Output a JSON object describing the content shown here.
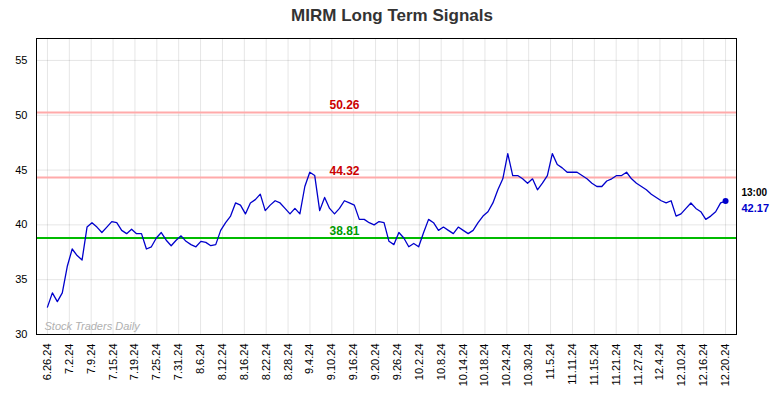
{
  "chart_data": {
    "type": "line",
    "title": "MIRM Long Term Signals",
    "color": "#0000cc",
    "grid": true,
    "xlim": [
      -0.5,
      31.5
    ],
    "xticks": [
      {
        "value": 0,
        "label": "6.26.24"
      },
      {
        "value": 1,
        "label": "7.2.24"
      },
      {
        "value": 2,
        "label": "7.9.24"
      },
      {
        "value": 3,
        "label": "7.15.24"
      },
      {
        "value": 4,
        "label": "7.19.24"
      },
      {
        "value": 5,
        "label": "7.25.24"
      },
      {
        "value": 6,
        "label": "7.31.24"
      },
      {
        "value": 7,
        "label": "8.6.24"
      },
      {
        "value": 8,
        "label": "8.12.24"
      },
      {
        "value": 9,
        "label": "8.16.24"
      },
      {
        "value": 10,
        "label": "8.22.24"
      },
      {
        "value": 11,
        "label": "8.28.24"
      },
      {
        "value": 12,
        "label": "9.4.24"
      },
      {
        "value": 13,
        "label": "9.10.24"
      },
      {
        "value": 14,
        "label": "9.16.24"
      },
      {
        "value": 15,
        "label": "9.20.24"
      },
      {
        "value": 16,
        "label": "9.26.24"
      },
      {
        "value": 17,
        "label": "10.2.24"
      },
      {
        "value": 18,
        "label": "10.8.24"
      },
      {
        "value": 19,
        "label": "10.14.24"
      },
      {
        "value": 20,
        "label": "10.18.24"
      },
      {
        "value": 21,
        "label": "10.24.24"
      },
      {
        "value": 22,
        "label": "10.30.24"
      },
      {
        "value": 23,
        "label": "11.5.24"
      },
      {
        "value": 24,
        "label": "11.11.24"
      },
      {
        "value": 25,
        "label": "11.15.24"
      },
      {
        "value": 26,
        "label": "11.21.24"
      },
      {
        "value": 27,
        "label": "11.27.24"
      },
      {
        "value": 28,
        "label": "12.4.24"
      },
      {
        "value": 29,
        "label": "12.10.24"
      },
      {
        "value": 30,
        "label": "12.16.24"
      },
      {
        "value": 31,
        "label": "12.20.24"
      }
    ],
    "ylim": [
      30,
      57
    ],
    "yticks": [
      30,
      35,
      40,
      45,
      50,
      55
    ],
    "x": [
      0,
      0.2263,
      0.4526,
      0.6788,
      0.9051,
      1.1314,
      1.3577,
      1.5839,
      1.8102,
      2.0365,
      2.2628,
      2.4891,
      2.7153,
      2.9416,
      3.1679,
      3.3942,
      3.6204,
      3.8467,
      4.073,
      4.2993,
      4.5255,
      4.7518,
      4.9781,
      5.2044,
      5.4307,
      5.6569,
      5.8832,
      6.1095,
      6.3358,
      6.562,
      6.7883,
      7.0146,
      7.2409,
      7.4672,
      7.6934,
      7.9197,
      8.146,
      8.3723,
      8.5985,
      8.8248,
      9.0511,
      9.2774,
      9.5036,
      9.7299,
      9.9562,
      10.1825,
      10.4088,
      10.635,
      10.8613,
      11.0876,
      11.3139,
      11.5401,
      11.7664,
      11.9927,
      12.219,
      12.4453,
      12.6715,
      12.8978,
      13.1241,
      13.3504,
      13.5766,
      13.8029,
      14.0292,
      14.2555,
      14.4818,
      14.708,
      14.9343,
      15.1606,
      15.3869,
      15.6131,
      15.8394,
      16.0657,
      16.292,
      16.5182,
      16.7445,
      16.9708,
      17.1971,
      17.4234,
      17.6496,
      17.8759,
      18.1022,
      18.3285,
      18.5547,
      18.781,
      19.0073,
      19.2336,
      19.4599,
      19.6861,
      19.9124,
      20.1387,
      20.365,
      20.5912,
      20.8175,
      21.0438,
      21.2701,
      21.4964,
      21.7226,
      21.9489,
      22.1752,
      22.4015,
      22.6277,
      22.854,
      23.0803,
      23.3066,
      23.5328,
      23.7591,
      23.9854,
      24.2117,
      24.438,
      24.6642,
      24.8905,
      25.1168,
      25.3431,
      25.5693,
      25.7956,
      26.0219,
      26.2482,
      26.4745,
      26.7007,
      26.927,
      27.1533,
      27.3796,
      27.6058,
      27.8321,
      28.0584,
      28.2847,
      28.5109,
      28.7372,
      28.9635,
      29.1898,
      29.4161,
      29.6423,
      29.8686,
      30.0949,
      30.3212,
      30.5474,
      30.7737,
      31
    ],
    "values": [
      32.5,
      33.8,
      33.0,
      33.8,
      36.2,
      37.8,
      37.2,
      36.8,
      39.8,
      40.2,
      39.8,
      39.3,
      39.8,
      40.3,
      40.2,
      39.5,
      39.2,
      39.6,
      39.2,
      39.2,
      37.8,
      38.0,
      38.8,
      39.3,
      38.6,
      38.1,
      38.6,
      39.0,
      38.5,
      38.2,
      38.0,
      38.5,
      38.4,
      38.1,
      38.2,
      39.5,
      40.2,
      40.8,
      42.0,
      41.8,
      41.0,
      42.0,
      42.3,
      42.8,
      41.3,
      41.8,
      42.2,
      42.0,
      41.5,
      41.0,
      41.5,
      41.0,
      43.5,
      44.8,
      44.5,
      41.3,
      42.5,
      41.5,
      41.0,
      41.5,
      42.2,
      42.0,
      41.8,
      40.5,
      40.5,
      40.2,
      40.0,
      40.3,
      40.2,
      38.5,
      38.2,
      39.3,
      38.8,
      38.0,
      38.3,
      38.0,
      39.3,
      40.5,
      40.2,
      39.5,
      39.8,
      39.5,
      39.2,
      39.8,
      39.5,
      39.2,
      39.5,
      40.2,
      40.8,
      41.2,
      42.0,
      43.2,
      44.2,
      46.5,
      44.5,
      44.5,
      44.2,
      43.8,
      44.2,
      43.2,
      43.8,
      44.5,
      46.5,
      45.5,
      45.2,
      44.8,
      44.8,
      44.8,
      44.5,
      44.2,
      43.8,
      43.5,
      43.5,
      44.0,
      44.2,
      44.5,
      44.5,
      44.8,
      44.2,
      43.8,
      43.5,
      43.2,
      42.8,
      42.5,
      42.2,
      42.0,
      42.2,
      40.8,
      41.0,
      41.5,
      42.0,
      41.5,
      41.2,
      40.5,
      40.8,
      41.2,
      42.0,
      42.17
    ],
    "hlines": [
      {
        "value": 50.26,
        "label": "50.26",
        "color": "#ffaaaa",
        "label_color": "#cc0000"
      },
      {
        "value": 44.32,
        "label": "44.32",
        "color": "#ffaaaa",
        "label_color": "#cc0000"
      },
      {
        "value": 38.81,
        "label": "38.81",
        "color": "#00bb00",
        "label_color": "#009900"
      }
    ],
    "last_point": {
      "time": "13:00",
      "label": "42.17",
      "value": 42.17
    },
    "watermark": "Stock Traders Daily"
  }
}
